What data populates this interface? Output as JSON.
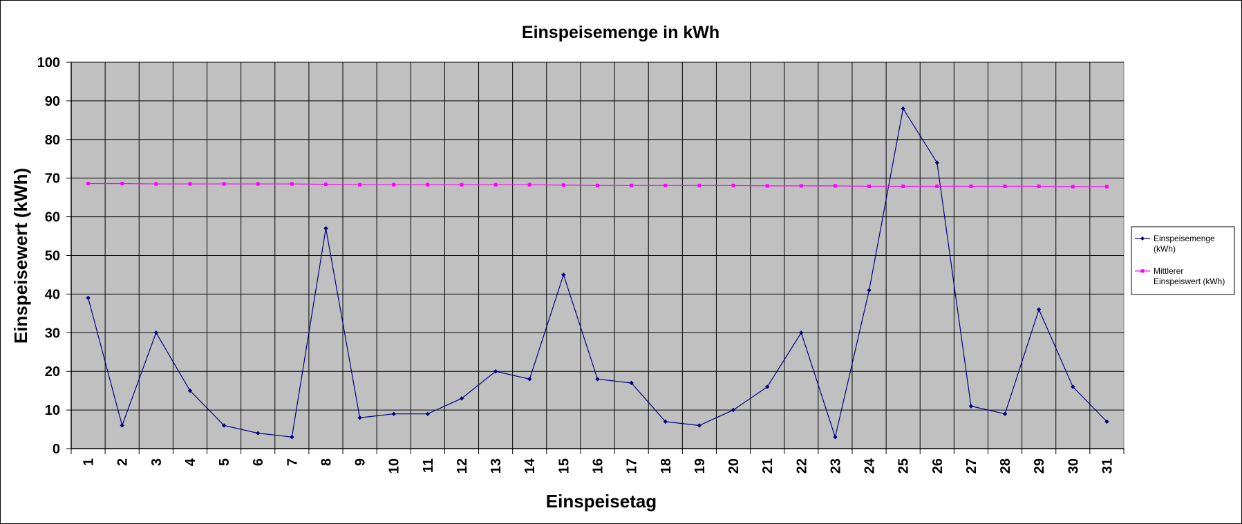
{
  "chart_data": {
    "type": "line",
    "title": "Einspeisemenge in kWh",
    "xlabel": "Einspeisetag",
    "ylabel": "Einspeisewert  (kWh)",
    "categories": [
      "1",
      "2",
      "3",
      "4",
      "5",
      "6",
      "7",
      "8",
      "9",
      "10",
      "11",
      "12",
      "13",
      "14",
      "15",
      "16",
      "17",
      "18",
      "19",
      "20",
      "21",
      "22",
      "23",
      "24",
      "25",
      "26",
      "27",
      "28",
      "29",
      "30",
      "31"
    ],
    "ylim": [
      0,
      100
    ],
    "yticks": [
      "0",
      "10",
      "20",
      "30",
      "40",
      "50",
      "60",
      "70",
      "80",
      "90",
      "100"
    ],
    "grid": true,
    "legend_position": "right",
    "plot_background": "#c0c0c0",
    "series": [
      {
        "name": "Einspeisemenge (kWh)",
        "legend_lines": [
          "Einspeisemenge",
          "(kWh)"
        ],
        "color": "#000080",
        "marker": "diamond",
        "values": [
          39,
          6,
          30,
          15,
          6,
          4,
          3,
          57,
          8,
          9,
          9,
          13,
          20,
          18,
          45,
          18,
          17,
          7,
          6,
          10,
          16,
          30,
          3,
          41,
          88,
          74,
          11,
          9,
          36,
          16,
          7
        ]
      },
      {
        "name": "Mittlerer Einspeiswert (kWh)",
        "legend_lines": [
          "Mittlerer",
          "Einspeiswert (kWh)"
        ],
        "color": "#ff00ff",
        "marker": "square",
        "values": [
          68.6,
          68.6,
          68.5,
          68.5,
          68.5,
          68.5,
          68.5,
          68.4,
          68.3,
          68.3,
          68.3,
          68.3,
          68.3,
          68.3,
          68.2,
          68.1,
          68.1,
          68.1,
          68.1,
          68.1,
          68.0,
          68.0,
          68.0,
          67.9,
          67.9,
          67.9,
          67.9,
          67.9,
          67.9,
          67.8,
          67.8
        ]
      }
    ]
  }
}
